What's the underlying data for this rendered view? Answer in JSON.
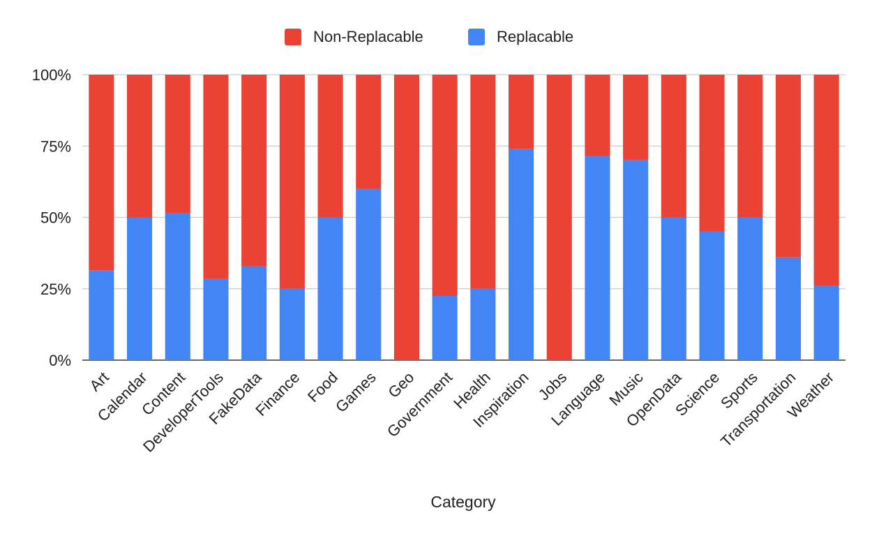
{
  "chart_data": {
    "type": "bar",
    "stacked": true,
    "normalized": true,
    "title": "",
    "xlabel": "Category",
    "ylabel": "",
    "ylim": [
      0,
      100
    ],
    "yticks": [
      0,
      25,
      50,
      75,
      100
    ],
    "ytick_labels": [
      "0%",
      "25%",
      "50%",
      "75%",
      "100%"
    ],
    "grid": true,
    "legend_position": "top",
    "categories": [
      "Art",
      "Calendar",
      "Content",
      "DeveloperTools",
      "FakeData",
      "Finance",
      "Food",
      "Games",
      "Geo",
      "Government",
      "Health",
      "Inspiration",
      "Jobs",
      "Language",
      "Music",
      "OpenData",
      "Science",
      "Sports",
      "Transportation",
      "Weather"
    ],
    "series": [
      {
        "name": "Replacable",
        "color": "#4285F4",
        "values": [
          31.5,
          50,
          51.5,
          28.5,
          33,
          25,
          50,
          60,
          0,
          22.5,
          25,
          74,
          0,
          71.5,
          70,
          50,
          45,
          50,
          36,
          26
        ]
      },
      {
        "name": "Non-Replacable",
        "color": "#EA4335",
        "values": [
          68.5,
          50,
          48.5,
          71.5,
          67,
          75,
          50,
          40,
          100,
          77.5,
          75,
          26,
          100,
          28.5,
          30,
          50,
          55,
          50,
          64,
          74
        ]
      }
    ],
    "legend": [
      {
        "name": "Non-Replacable",
        "color": "#EA4335"
      },
      {
        "name": "Replacable",
        "color": "#4285F4"
      }
    ]
  }
}
